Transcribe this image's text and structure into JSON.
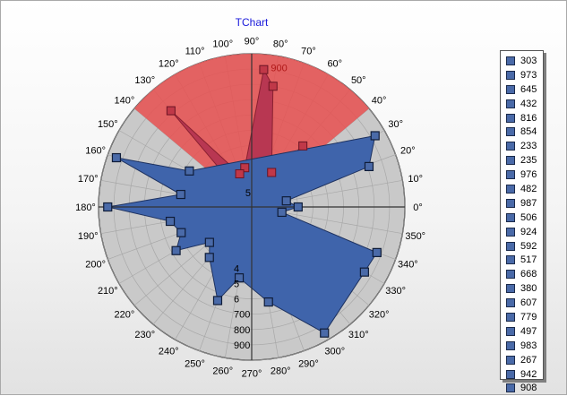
{
  "colors": {
    "series1": "#3f64ab",
    "series1_edge": "#1e3260",
    "series2": "#e04848",
    "series2_fill": "#e85050",
    "ring": "#c9c9c9",
    "title": "#1a1adb"
  },
  "chart_data": {
    "type": "polar",
    "title": "TChart",
    "angle_labels": [
      "0°",
      "10°",
      "20°",
      "30°",
      "40°",
      "50°",
      "60°",
      "70°",
      "80°",
      "90°",
      "100°",
      "110°",
      "120°",
      "130°",
      "140°",
      "150°",
      "160°",
      "170°",
      "180°",
      "190°",
      "200°",
      "210°",
      "220°",
      "230°",
      "240°",
      "250°",
      "260°",
      "270°",
      "280°",
      "290°",
      "300°",
      "310°",
      "320°",
      "330°",
      "340°",
      "350°"
    ],
    "radius_labels": [
      "4",
      "5",
      "6",
      "700",
      "800",
      "900"
    ],
    "radius_labels_270": [
      "4",
      "5",
      "6",
      "700",
      "800",
      "900"
    ],
    "radius_label_90": "900",
    "radius_label_180": "5",
    "r_max": 1000,
    "grid": true,
    "legend_position": "right",
    "series": [
      {
        "points": [
          {
            "angle": 0,
            "r": 303
          },
          {
            "angle": 10,
            "r": 230
          },
          {
            "angle": 19,
            "r": 810
          },
          {
            "angle": 30,
            "r": 930
          },
          {
            "angle": 150,
            "r": 470
          },
          {
            "angle": 160,
            "r": 940
          },
          {
            "angle": 170,
            "r": 470
          },
          {
            "angle": 180,
            "r": 940
          },
          {
            "angle": 190,
            "r": 540
          },
          {
            "angle": 200,
            "r": 490
          },
          {
            "angle": 210,
            "r": 570
          },
          {
            "angle": 220,
            "r": 360
          },
          {
            "angle": 230,
            "r": 430
          },
          {
            "angle": 250,
            "r": 650
          },
          {
            "angle": 260,
            "r": 470
          },
          {
            "angle": 280,
            "r": 630
          },
          {
            "angle": 300,
            "r": 950
          },
          {
            "angle": 330,
            "r": 850
          },
          {
            "angle": 340,
            "r": 870
          },
          {
            "angle": 350,
            "r": 200
          }
        ]
      },
      {
        "points": [
          {
            "angle": 50,
            "r": 520
          },
          {
            "angle": 60,
            "r": 260
          },
          {
            "angle": 80,
            "r": 800
          },
          {
            "angle": 85,
            "r": 900
          },
          {
            "angle": 100,
            "r": 260
          },
          {
            "angle": 110,
            "r": 230
          },
          {
            "angle": 130,
            "r": 820
          }
        ]
      }
    ]
  },
  "legend": {
    "items": [
      "303",
      "973",
      "645",
      "432",
      "816",
      "854",
      "233",
      "235",
      "976",
      "482",
      "987",
      "506",
      "924",
      "592",
      "517",
      "668",
      "380",
      "607",
      "779",
      "497",
      "983",
      "267",
      "942",
      "908"
    ]
  }
}
